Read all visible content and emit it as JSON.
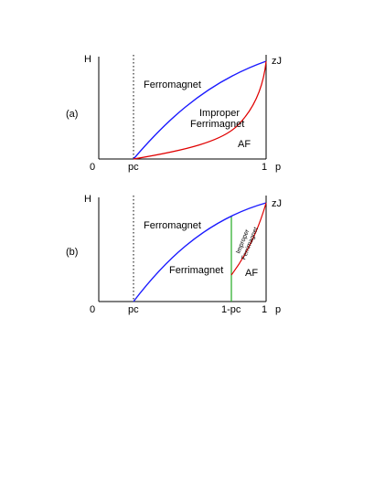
{
  "colors": {
    "axis": "#000000",
    "ferro_boundary": "#1a1aff",
    "af_boundary": "#e00000",
    "vertical_line": "#22aa22",
    "pc_marker": "#000000"
  },
  "panel_a": {
    "label": "(a)",
    "y_axis_label": "H",
    "x_axis_label": "p",
    "origin_label": "0",
    "pc_label": "pc",
    "one_label": "1",
    "top_right_label": "zJ",
    "regions": {
      "ferromagnet": "Ferromagnet",
      "improper_line1": "Improper",
      "improper_line2": "Ferrimagnet",
      "af": "AF"
    }
  },
  "panel_b": {
    "label": "(b)",
    "y_axis_label": "H",
    "x_axis_label": "p",
    "origin_label": "0",
    "pc_label": "pc",
    "one_minus_pc_label": "1-pc",
    "one_label": "1",
    "top_right_label": "zJ",
    "regions": {
      "ferromagnet": "Ferromagnet",
      "ferrimagnet": "Ferrimagnet",
      "improper_line1": "Improper",
      "improper_line2": "Ferrimagnet",
      "af": "AF"
    }
  }
}
